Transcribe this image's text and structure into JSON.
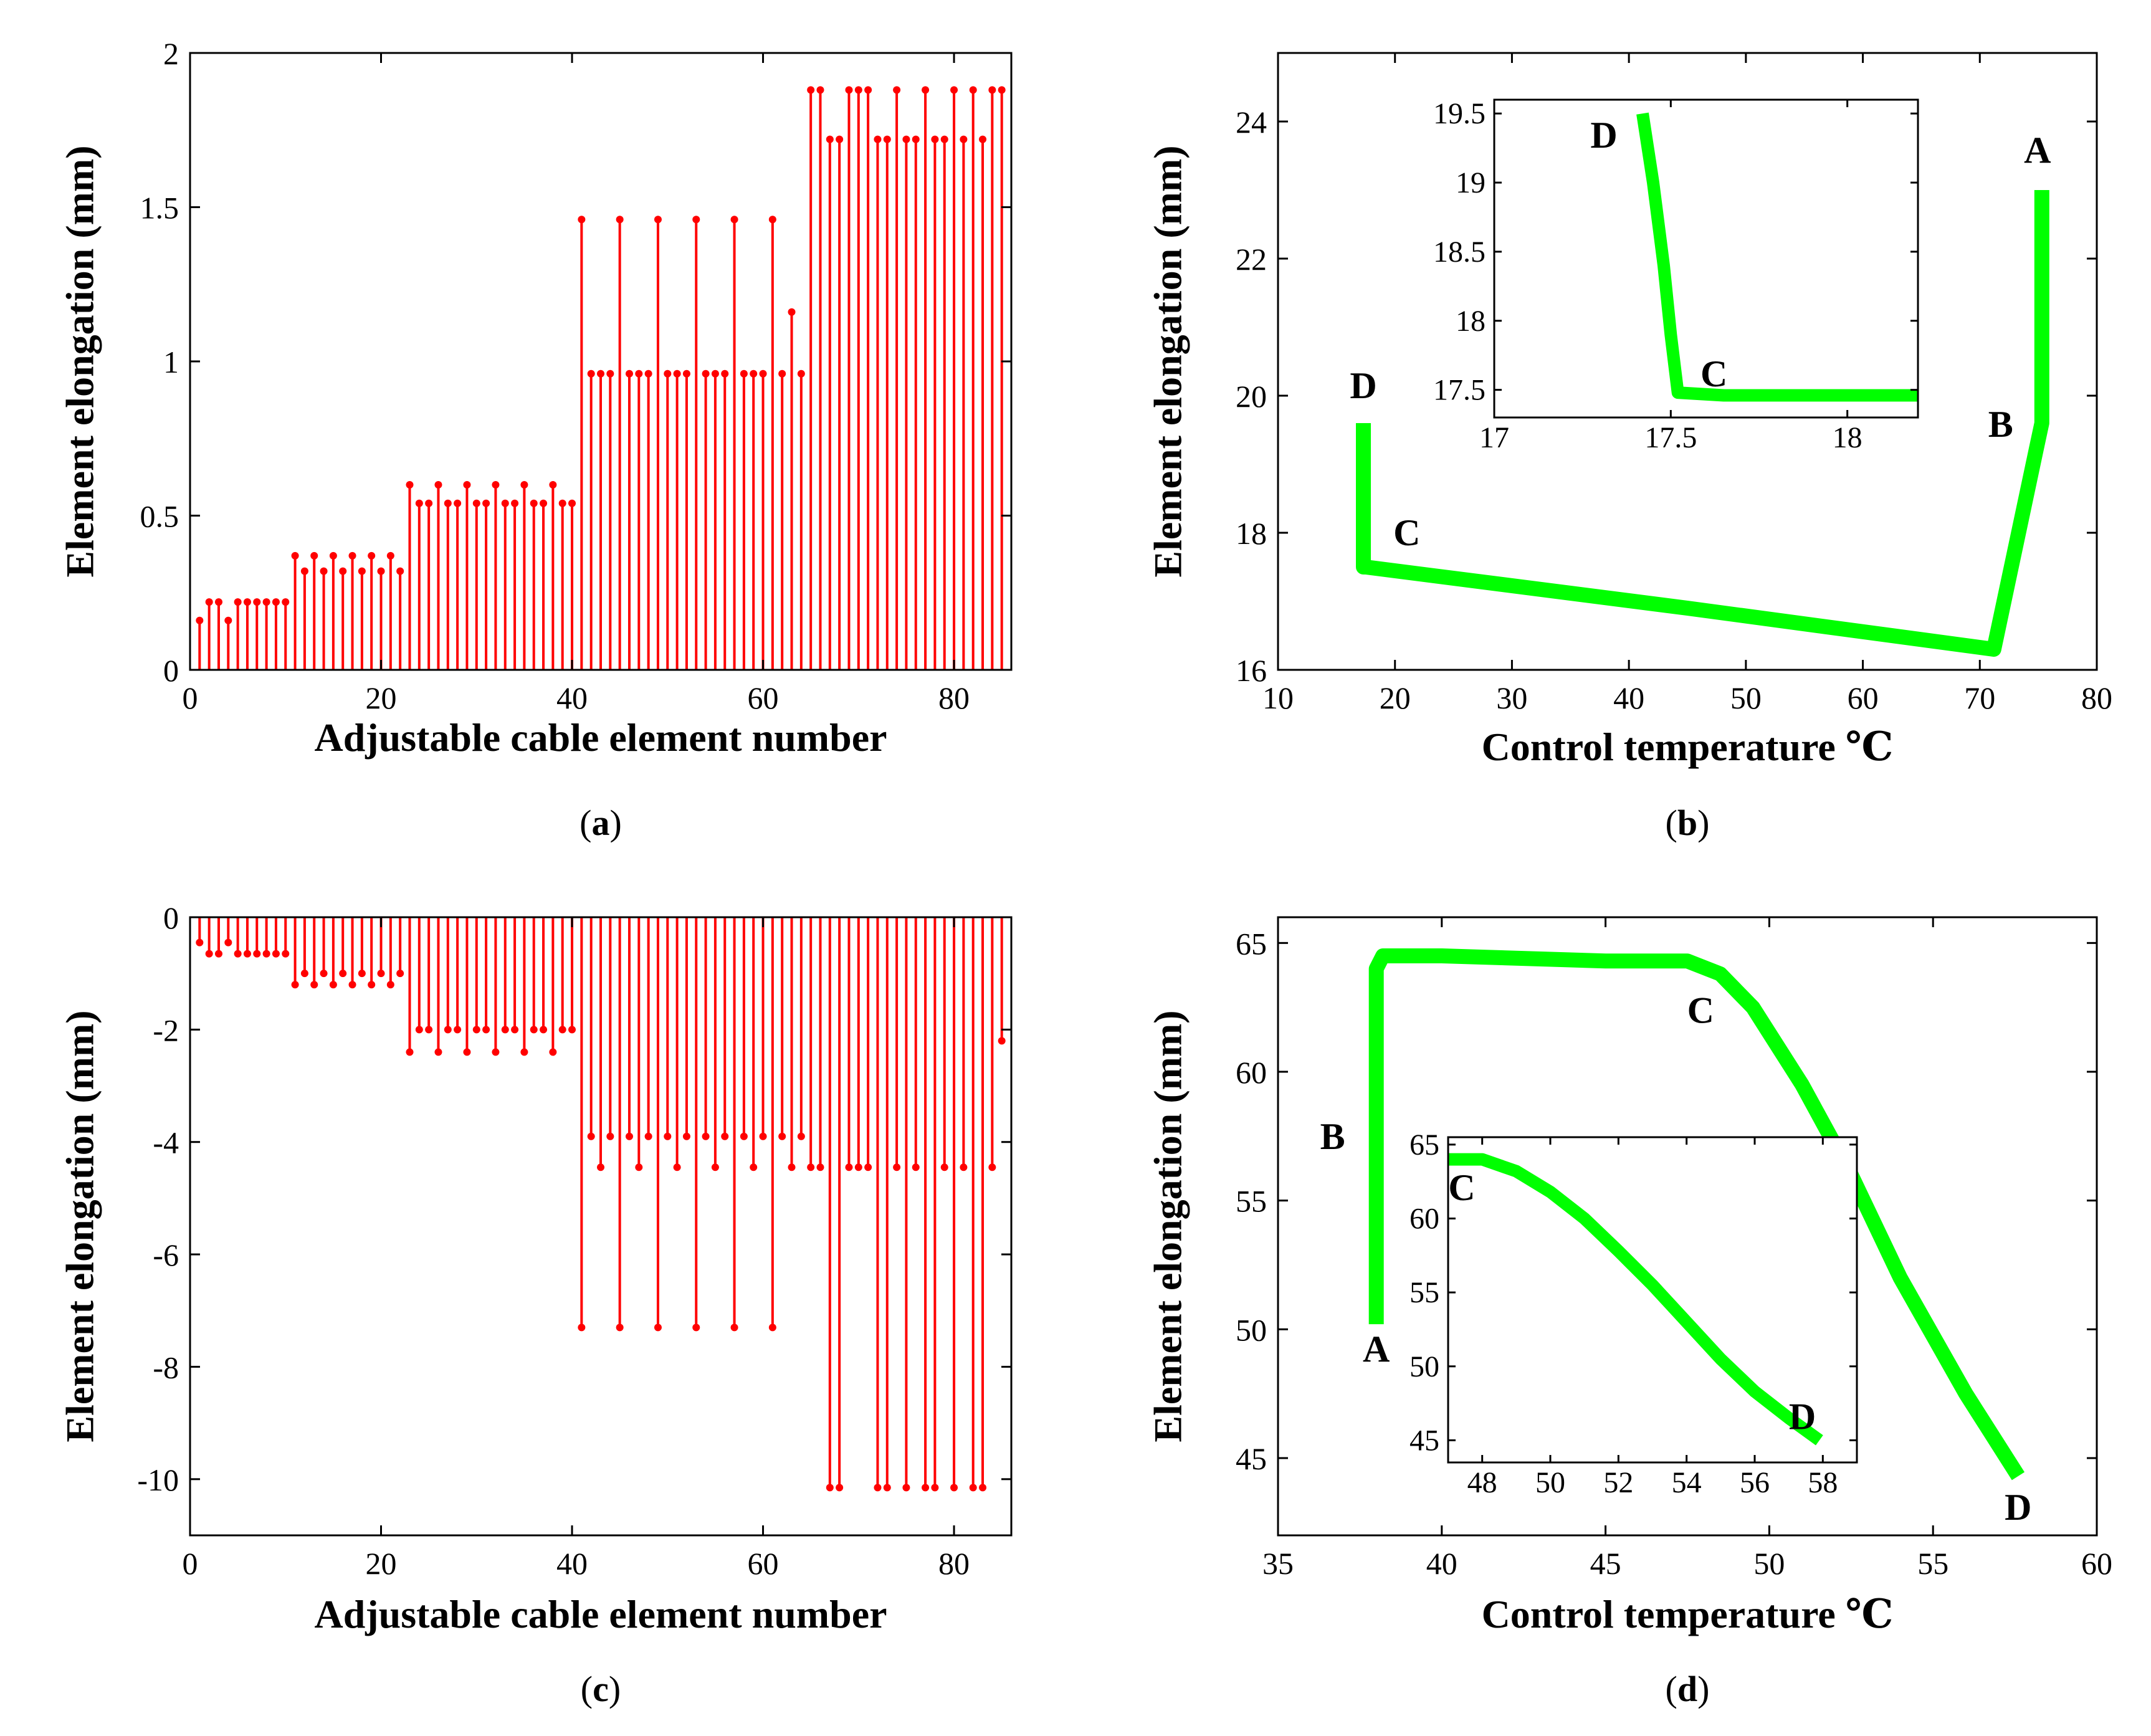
{
  "chart_data": [
    {
      "id": "a",
      "panel_label": "a",
      "type": "stem",
      "xlabel": "Adjustable cable element number",
      "ylabel": "Element elongation (mm)",
      "xlim": [
        0,
        86
      ],
      "ylim": [
        0,
        2
      ],
      "xticks": [
        0,
        20,
        40,
        60,
        80
      ],
      "yticks": [
        0,
        0.5,
        1,
        1.5,
        2
      ],
      "ytick_labels": [
        "0",
        "0.5",
        "1",
        "1.5",
        "2"
      ],
      "color": "#ff0000",
      "x": [
        1,
        2,
        3,
        4,
        5,
        6,
        7,
        8,
        9,
        10,
        11,
        12,
        13,
        14,
        15,
        16,
        17,
        18,
        19,
        20,
        21,
        22,
        23,
        24,
        25,
        26,
        27,
        28,
        29,
        30,
        31,
        32,
        33,
        34,
        35,
        36,
        37,
        38,
        39,
        40,
        41,
        42,
        43,
        44,
        45,
        46,
        47,
        48,
        49,
        50,
        51,
        52,
        53,
        54,
        55,
        56,
        57,
        58,
        59,
        60,
        61,
        62,
        63,
        64,
        65,
        66,
        67,
        68,
        69,
        70,
        71,
        72,
        73,
        74,
        75,
        76,
        77,
        78,
        79,
        80,
        81,
        82,
        83,
        84,
        85
      ],
      "values": [
        0.16,
        0.22,
        0.22,
        0.16,
        0.22,
        0.22,
        0.22,
        0.22,
        0.22,
        0.22,
        0.37,
        0.32,
        0.37,
        0.32,
        0.37,
        0.32,
        0.37,
        0.32,
        0.37,
        0.32,
        0.37,
        0.32,
        0.6,
        0.54,
        0.54,
        0.6,
        0.54,
        0.54,
        0.6,
        0.54,
        0.54,
        0.6,
        0.54,
        0.54,
        0.6,
        0.54,
        0.54,
        0.6,
        0.54,
        0.54,
        1.46,
        0.96,
        0.96,
        0.96,
        1.46,
        0.96,
        0.96,
        0.96,
        1.46,
        0.96,
        0.96,
        0.96,
        1.46,
        0.96,
        0.96,
        0.96,
        1.46,
        0.96,
        0.96,
        0.96,
        1.46,
        0.96,
        1.16,
        0.96,
        1.88,
        1.88,
        1.72,
        1.72,
        1.88,
        1.88,
        1.88,
        1.72,
        1.72,
        1.88,
        1.72,
        1.72,
        1.88,
        1.72,
        1.72,
        1.88,
        1.72,
        1.88,
        1.72,
        1.88,
        1.88
      ]
    },
    {
      "id": "b",
      "panel_label": "b",
      "type": "line",
      "xlabel": "Control temperature ℃",
      "ylabel": "Element elongation (mm)",
      "xlim": [
        10,
        80
      ],
      "ylim": [
        16,
        25
      ],
      "xticks": [
        10,
        20,
        30,
        40,
        50,
        60,
        70,
        80
      ],
      "yticks": [
        16,
        18,
        20,
        22,
        24
      ],
      "color": "#00ff00",
      "series": [
        {
          "name": "elongation",
          "x": [
            75.3,
            75.3,
            74.8,
            71.2,
            45,
            17.5,
            17.3,
            17.3
          ],
          "y": [
            23.0,
            19.6,
            19.2,
            16.3,
            16.9,
            17.5,
            17.5,
            19.6
          ]
        }
      ],
      "annotations": [
        {
          "text": "A",
          "x": 75.3,
          "y": 23.0
        },
        {
          "text": "B",
          "x": 75.3,
          "y": 19.6
        },
        {
          "text": "C",
          "x": 17.5,
          "y": 17.5
        },
        {
          "text": "D",
          "x": 17.3,
          "y": 19.6
        }
      ],
      "inset": {
        "xlim": [
          17,
          18.2
        ],
        "ylim": [
          17.3,
          19.6
        ],
        "xticks": [
          17,
          17.5,
          18
        ],
        "yticks": [
          17.5,
          18,
          18.5,
          19,
          19.5
        ],
        "series": [
          {
            "x": [
              17.42,
              17.45,
              17.48,
              17.5,
              17.52,
              17.65,
              18.2
            ],
            "y": [
              19.5,
              19.0,
              18.4,
              17.9,
              17.48,
              17.46,
              17.46
            ]
          }
        ],
        "annotations": [
          {
            "text": "D",
            "x": 17.42,
            "y": 19.5
          },
          {
            "text": "C",
            "x": 17.52,
            "y": 17.48
          }
        ]
      }
    },
    {
      "id": "c",
      "panel_label": "c",
      "type": "stem",
      "xlabel": "Adjustable cable element number",
      "ylabel": "Element elongation (mm)",
      "xlim": [
        0,
        86
      ],
      "ylim": [
        -11,
        0
      ],
      "xticks": [
        0,
        20,
        40,
        60,
        80
      ],
      "yticks": [
        0,
        -2,
        -4,
        -6,
        -8,
        -10
      ],
      "color": "#ff0000",
      "x": [
        1,
        2,
        3,
        4,
        5,
        6,
        7,
        8,
        9,
        10,
        11,
        12,
        13,
        14,
        15,
        16,
        17,
        18,
        19,
        20,
        21,
        22,
        23,
        24,
        25,
        26,
        27,
        28,
        29,
        30,
        31,
        32,
        33,
        34,
        35,
        36,
        37,
        38,
        39,
        40,
        41,
        42,
        43,
        44,
        45,
        46,
        47,
        48,
        49,
        50,
        51,
        52,
        53,
        54,
        55,
        56,
        57,
        58,
        59,
        60,
        61,
        62,
        63,
        64,
        65,
        66,
        67,
        68,
        69,
        70,
        71,
        72,
        73,
        74,
        75,
        76,
        77,
        78,
        79,
        80,
        81,
        82,
        83,
        84,
        85
      ],
      "values": [
        -0.45,
        -0.65,
        -0.65,
        -0.45,
        -0.65,
        -0.65,
        -0.65,
        -0.65,
        -0.65,
        -0.65,
        -1.2,
        -1.0,
        -1.2,
        -1.0,
        -1.2,
        -1.0,
        -1.2,
        -1.0,
        -1.2,
        -1.0,
        -1.2,
        -1.0,
        -2.4,
        -2.0,
        -2.0,
        -2.4,
        -2.0,
        -2.0,
        -2.4,
        -2.0,
        -2.0,
        -2.4,
        -2.0,
        -2.0,
        -2.4,
        -2.0,
        -2.0,
        -2.4,
        -2.0,
        -2.0,
        -7.3,
        -3.9,
        -4.45,
        -3.9,
        -7.3,
        -3.9,
        -4.45,
        -3.9,
        -7.3,
        -3.9,
        -4.45,
        -3.9,
        -7.3,
        -3.9,
        -4.45,
        -3.9,
        -7.3,
        -3.9,
        -4.45,
        -3.9,
        -7.3,
        -3.9,
        -4.45,
        -3.9,
        -4.45,
        -4.45,
        -10.15,
        -10.15,
        -4.45,
        -4.45,
        -4.45,
        -10.15,
        -10.15,
        -4.45,
        -10.15,
        -4.45,
        -10.15,
        -10.15,
        -4.45,
        -10.15,
        -4.45,
        -10.15,
        -10.15,
        -4.45,
        -2.2
      ]
    },
    {
      "id": "d",
      "panel_label": "d",
      "type": "line",
      "xlabel": "Control temperature ℃",
      "ylabel": "Element elongation (mm)",
      "xlim": [
        35,
        60
      ],
      "ylim": [
        42,
        66
      ],
      "xticks": [
        35,
        40,
        45,
        50,
        55,
        60
      ],
      "yticks": [
        45,
        50,
        55,
        60,
        65
      ],
      "color": "#00ff00",
      "series": [
        {
          "name": "elongation",
          "x": [
            38.0,
            38.0,
            38.2,
            40,
            45,
            47.5,
            48.5,
            49.5,
            51,
            52.5,
            54,
            56,
            57.6
          ],
          "y": [
            50.2,
            64.0,
            64.5,
            64.5,
            64.3,
            64.3,
            63.8,
            62.5,
            59.5,
            56.0,
            52.0,
            47.5,
            44.3
          ]
        }
      ],
      "annotations": [
        {
          "text": "A",
          "x": 38.0,
          "y": 50.2
        },
        {
          "text": "B",
          "x": 38.0,
          "y": 57.0
        },
        {
          "text": "C",
          "x": 48.0,
          "y": 64.2
        },
        {
          "text": "D",
          "x": 57.6,
          "y": 44.3
        }
      ],
      "inset": {
        "xlim": [
          47,
          59
        ],
        "ylim": [
          43.5,
          65.5
        ],
        "xticks": [
          48,
          50,
          52,
          54,
          56,
          58
        ],
        "yticks": [
          45,
          50,
          55,
          60,
          65
        ],
        "series": [
          {
            "x": [
              47.0,
              48,
              49,
              50,
              51,
              52,
              53,
              54,
              55,
              56,
              57,
              57.9
            ],
            "y": [
              64.0,
              64.0,
              63.2,
              61.8,
              60.0,
              57.8,
              55.5,
              53.0,
              50.5,
              48.3,
              46.5,
              45.0
            ]
          }
        ],
        "annotations": [
          {
            "text": "C",
            "x": 47.4,
            "y": 62.3
          },
          {
            "text": "D",
            "x": 57.4,
            "y": 46.8
          }
        ]
      }
    }
  ]
}
